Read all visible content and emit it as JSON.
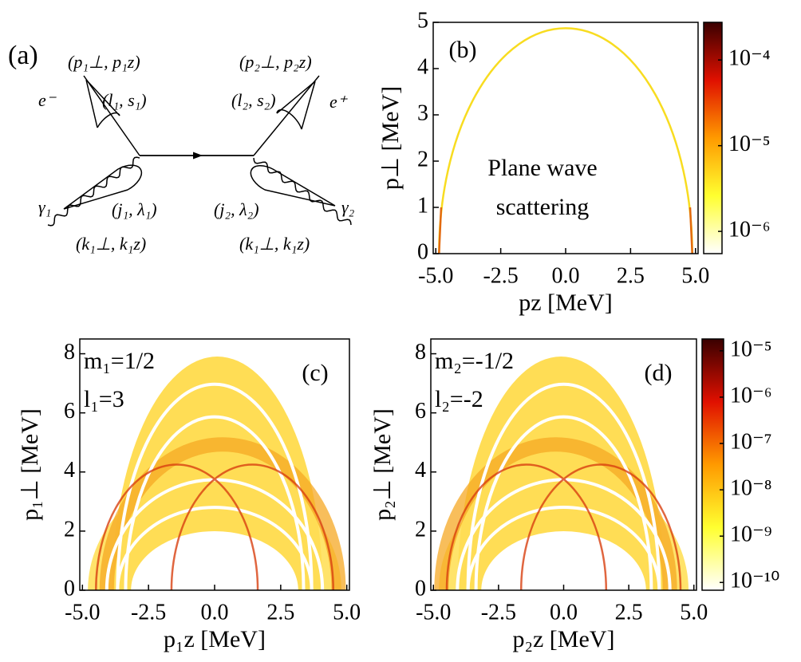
{
  "diagram": {
    "label": "(a)",
    "electron": "e⁻",
    "positron": "e⁺",
    "photon1": "γ₁",
    "photon2": "γ₂",
    "electron_momentum": "(p₁⊥, p₁z)",
    "electron_quantum": "(l₁, s₁)",
    "positron_momentum": "(p₂⊥, p₂z)",
    "positron_quantum": "(l₂, s₂)",
    "photon1_quantum": "(j₁, λ₁)",
    "photon2_quantum": "(j₂, λ₂)",
    "photon1_momentum": "(k₁⊥, k₁z)",
    "photon2_momentum": "(k₁⊥, k₁z)"
  },
  "chart_data": [
    {
      "type": "heatmap",
      "panel_label": "(b)",
      "annotations": [
        "Plane wave",
        "scattering"
      ],
      "x_label": "pz [MeV]",
      "y_label": "p⊥ [MeV]",
      "xlim": [
        -5.1,
        5.1
      ],
      "xticks": [
        {
          "value": -5,
          "label": "-5.0"
        },
        {
          "value": -2.5,
          "label": "-2.5"
        },
        {
          "value": 0,
          "label": "0.0"
        },
        {
          "value": 2.5,
          "label": "2.5"
        },
        {
          "value": 5,
          "label": "5.0"
        }
      ],
      "ylim": [
        0,
        5
      ],
      "yticks": [
        0,
        1,
        2,
        3,
        4,
        5
      ],
      "colorbar": {
        "log": true,
        "clim": [
          5.5e-07,
          0.000275
        ],
        "colors": [
          "#ffffff",
          "#ffff30",
          "#ff9a00",
          "#e01000",
          "#3a0000"
        ],
        "ticks": [
          {
            "value": 1e-06,
            "label": "10⁻⁶"
          },
          {
            "value": 1e-05,
            "label": "10⁻⁵"
          },
          {
            "value": 0.0001,
            "label": "10⁻⁴"
          }
        ]
      }
    },
    {
      "type": "heatmap",
      "panel_label": "(c)",
      "annotations": [
        "m₁=1/2",
        "l₁=3"
      ],
      "x_label": "p₁z [MeV]",
      "y_label": "p₁⊥ [MeV]",
      "xlim": [
        -5.1,
        5.1
      ],
      "xticks": [
        {
          "value": -5,
          "label": "-5.0"
        },
        {
          "value": -2.5,
          "label": "-2.5"
        },
        {
          "value": 0,
          "label": "0.0"
        },
        {
          "value": 2.5,
          "label": "2.5"
        },
        {
          "value": 5,
          "label": "5.0"
        }
      ],
      "ylim": [
        0,
        8.5
      ],
      "yticks": [
        0,
        2,
        4,
        6,
        8
      ]
    },
    {
      "type": "heatmap",
      "panel_label": "(d)",
      "annotations": [
        "m₂=-1/2",
        "l₂=-2"
      ],
      "x_label": "p₂z [MeV]",
      "y_label": "p₂⊥ [MeV]",
      "xlim": [
        -5.1,
        5.1
      ],
      "xticks": [
        {
          "value": -5,
          "label": "-5.0"
        },
        {
          "value": -2.5,
          "label": "-2.5"
        },
        {
          "value": 0,
          "label": "0.0"
        },
        {
          "value": 2.5,
          "label": "2.5"
        },
        {
          "value": 5,
          "label": "5.0"
        }
      ],
      "ylim": [
        0,
        8.5
      ],
      "yticks": [
        0,
        2,
        4,
        6,
        8
      ],
      "colorbar": {
        "log": true,
        "clim": [
          6.8e-11,
          1.8e-05
        ],
        "colors": [
          "#ffffff",
          "#ffff30",
          "#ff9a00",
          "#e01000",
          "#3a0000"
        ],
        "ticks": [
          {
            "value": 1e-10,
            "label": "10⁻¹⁰"
          },
          {
            "value": 1e-09,
            "label": "10⁻⁹"
          },
          {
            "value": 1e-08,
            "label": "10⁻⁸"
          },
          {
            "value": 1e-07,
            "label": "10⁻⁷"
          },
          {
            "value": 1e-06,
            "label": "10⁻⁶"
          },
          {
            "value": 1e-05,
            "label": "10⁻⁵"
          }
        ]
      }
    }
  ]
}
